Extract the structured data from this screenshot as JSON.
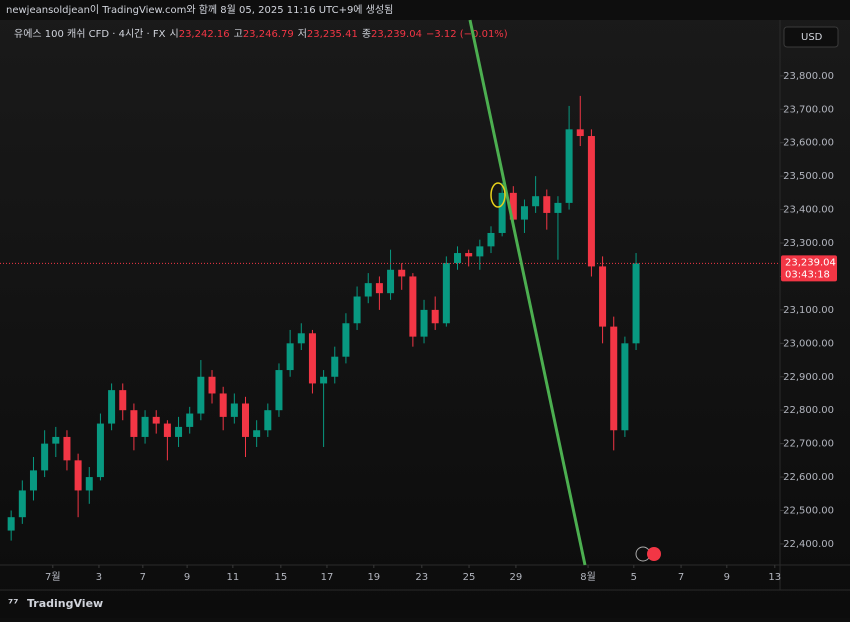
{
  "header": "newjeansoldjean이 TradingView.com와 함께 8월 05, 2025 11:16 UTC+9에 생성됨",
  "footer": "TradingView",
  "chart_data": {
    "type": "candlestick",
    "legend": {
      "symbol": "유에스 100 캐쉬 CFD · 4시간 · FX",
      "open_label": "시",
      "open": "23,242.16",
      "high_label": "고",
      "high": "23,246.79",
      "low_label": "저",
      "low": "23,235.41",
      "close_label": "종",
      "close": "23,239.04",
      "change": "−3.12 (−0.01%)"
    },
    "currency": "USD",
    "last_price": {
      "value": 23239.04,
      "label": "23,239.04"
    },
    "countdown": "03:43:18",
    "up_color": "#089981",
    "down_color": "#f23645",
    "x": [
      3,
      6,
      9,
      12,
      15,
      18,
      21,
      24,
      27,
      30,
      33,
      36,
      39,
      42,
      45,
      48,
      51,
      54,
      57,
      60,
      63,
      66,
      69,
      72,
      75,
      78,
      81,
      84,
      87,
      90,
      93,
      96,
      99,
      102,
      105,
      108,
      111,
      114,
      117,
      120,
      123,
      126,
      129,
      132,
      135,
      138,
      141,
      144,
      147,
      150,
      153,
      156,
      159,
      162,
      165,
      168,
      171
    ],
    "open": [
      22440,
      22480,
      22560,
      22620,
      22700,
      22720,
      22650,
      22560,
      22600,
      22760,
      22860,
      22800,
      22720,
      22780,
      22760,
      22720,
      22750,
      22790,
      22900,
      22850,
      22780,
      22820,
      22720,
      22740,
      22800,
      22920,
      23000,
      23030,
      22880,
      22900,
      22960,
      23060,
      23140,
      23180,
      23150,
      23220,
      23200,
      23020,
      23100,
      23060,
      23240,
      23270,
      23260,
      23290,
      23330,
      23450,
      23370,
      23410,
      23440,
      23390,
      23420,
      23640,
      23620,
      23230,
      23050,
      22740,
      23000
    ],
    "high": [
      22500,
      22590,
      22660,
      22740,
      22750,
      22740,
      22670,
      22630,
      22790,
      22880,
      22880,
      22820,
      22800,
      22800,
      22770,
      22780,
      22810,
      22950,
      22920,
      22870,
      22850,
      22840,
      22770,
      22820,
      22940,
      23040,
      23060,
      23040,
      22920,
      22990,
      23090,
      23170,
      23210,
      23200,
      23280,
      23240,
      23210,
      23130,
      23140,
      23260,
      23290,
      23280,
      23310,
      23350,
      23480,
      23470,
      23430,
      23500,
      23460,
      23440,
      23710,
      23740,
      23640,
      23260,
      23080,
      23020,
      23270
    ],
    "low": [
      22410,
      22460,
      22530,
      22600,
      22660,
      22620,
      22480,
      22520,
      22590,
      22740,
      22770,
      22680,
      22700,
      22730,
      22650,
      22690,
      22730,
      22770,
      22820,
      22740,
      22760,
      22660,
      22690,
      22720,
      22780,
      22900,
      22980,
      22850,
      22690,
      22880,
      22940,
      23040,
      23120,
      23100,
      23130,
      23160,
      22990,
      23000,
      23040,
      23050,
      23220,
      23230,
      23220,
      23270,
      23320,
      23340,
      23330,
      23390,
      23340,
      23250,
      23400,
      23590,
      23200,
      23000,
      22680,
      22720,
      22980
    ],
    "close": [
      22480,
      22560,
      22620,
      22700,
      22720,
      22650,
      22560,
      22600,
      22760,
      22860,
      22800,
      22720,
      22780,
      22760,
      22720,
      22750,
      22790,
      22900,
      22850,
      22780,
      22820,
      22720,
      22740,
      22800,
      22920,
      23000,
      23030,
      22880,
      22900,
      22960,
      23060,
      23140,
      23180,
      23150,
      23220,
      23200,
      23020,
      23100,
      23060,
      23240,
      23270,
      23260,
      23290,
      23330,
      23450,
      23370,
      23410,
      23440,
      23390,
      23420,
      23640,
      23620,
      23230,
      23050,
      22740,
      23000,
      23239.04
    ],
    "xlim": [
      0,
      209.7
    ],
    "xticks": [
      {
        "value": 14.2,
        "label": "7월"
      },
      {
        "value": 26.6,
        "label": "3"
      },
      {
        "value": 38.4,
        "label": "7"
      },
      {
        "value": 50.3,
        "label": "9"
      },
      {
        "value": 62.6,
        "label": "11"
      },
      {
        "value": 75.5,
        "label": "15"
      },
      {
        "value": 87.9,
        "label": "17"
      },
      {
        "value": 100.5,
        "label": "19"
      },
      {
        "value": 113.4,
        "label": "23"
      },
      {
        "value": 126.1,
        "label": "25"
      },
      {
        "value": 138.7,
        "label": "29"
      },
      {
        "value": 158.1,
        "label": "8월"
      },
      {
        "value": 170.4,
        "label": "5"
      },
      {
        "value": 183.1,
        "label": "7"
      },
      {
        "value": 195.4,
        "label": "9"
      },
      {
        "value": 208.3,
        "label": "13"
      }
    ],
    "ylim": [
      22337,
      23967
    ],
    "yticks": [
      {
        "value": 22400,
        "label": "22,400.00"
      },
      {
        "value": 22500,
        "label": "22,500.00"
      },
      {
        "value": 22600,
        "label": "22,600.00"
      },
      {
        "value": 22700,
        "label": "22,700.00"
      },
      {
        "value": 22800,
        "label": "22,800.00"
      },
      {
        "value": 22900,
        "label": "22,900.00"
      },
      {
        "value": 23000,
        "label": "23,000.00"
      },
      {
        "value": 23100,
        "label": "23,100.00"
      },
      {
        "value": 23200,
        "label": "23,200.00"
      },
      {
        "value": 23300,
        "label": "23,300.00"
      },
      {
        "value": 23400,
        "label": "23,400.00"
      },
      {
        "value": 23500,
        "label": "23,500.00"
      },
      {
        "value": 23600,
        "label": "23,600.00"
      },
      {
        "value": 23700,
        "label": "23,700.00"
      },
      {
        "value": 23800,
        "label": "23,800.00"
      }
    ]
  }
}
